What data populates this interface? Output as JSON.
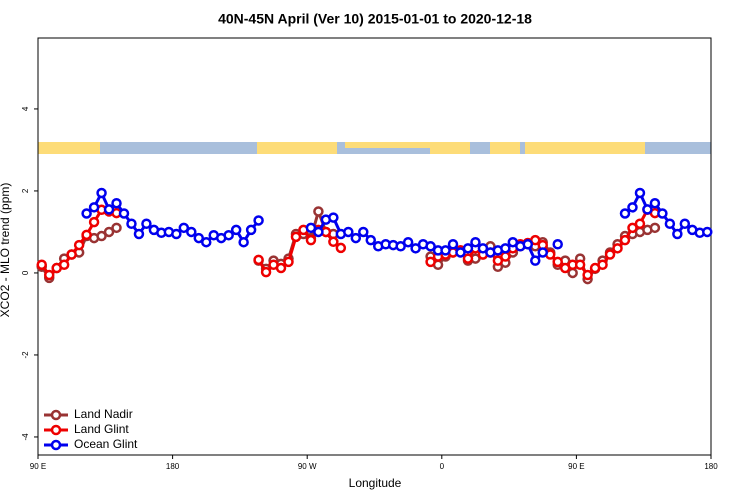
{
  "chart_data": {
    "type": "line",
    "title": "40N-45N April (Ver 10)   2015-01-01 to 2020-12-18",
    "x_label": "Longitude",
    "y_label": "XCO2 - MLO trend (ppm)",
    "xlim": [
      90,
      540
    ],
    "xticks": [
      {
        "value": 90,
        "label": "90 E"
      },
      180,
      {
        "value": 270,
        "label": "90 W"
      },
      {
        "value": 360,
        "label": "0"
      },
      {
        "value": 450,
        "label": "90 E"
      },
      {
        "value": 540,
        "label": "180"
      }
    ],
    "ylim": [
      -4.44,
      5.73
    ],
    "yticks": [
      -4,
      -2,
      0,
      2,
      4
    ],
    "legend": "bottom-left",
    "series": [
      {
        "name": "Land Nadir",
        "color": "#993333",
        "x": [
          92.5,
          97.5,
          102.5,
          107.5,
          112.5,
          117.5,
          122.5,
          127.5,
          132.5,
          137.5,
          142.5,
          147.5,
          237.5,
          242.5,
          247.5,
          252.5,
          257.5,
          262.5,
          267.5,
          272.5,
          277.5,
          282.5,
          287.5,
          292.5,
          352.5,
          357.5,
          362.5,
          367.5,
          372.5,
          377.5,
          382.5,
          387.5,
          392.5,
          397.5,
          402.5,
          407.5,
          412.5,
          417.5,
          422.5,
          427.5,
          432.5,
          437.5,
          442.5,
          447.5,
          452.5,
          457.5,
          462.5,
          467.5,
          472.5,
          477.5,
          482.5,
          487.5,
          492.5,
          497.5,
          502.5
        ],
        "values": [
          0.15,
          -0.12,
          0.12,
          0.35,
          0.45,
          0.5,
          0.9,
          0.85,
          0.9,
          1.0,
          1.1,
          null,
          0.3,
          0.1,
          0.3,
          0.22,
          0.35,
          0.95,
          0.95,
          0.85,
          1.5,
          1.0,
          0.95,
          null,
          0.4,
          0.2,
          0.4,
          0.5,
          0.55,
          0.3,
          0.35,
          0.45,
          0.65,
          0.15,
          0.25,
          0.5,
          0.65,
          0.7,
          0.65,
          0.75,
          0.5,
          0.2,
          0.3,
          0.0,
          0.35,
          -0.15,
          0.1,
          0.3,
          0.5,
          0.7,
          0.9,
          0.95,
          1.0,
          1.05,
          1.1
        ]
      },
      {
        "name": "Land Glint",
        "color": "#ee0000",
        "x": [
          92.5,
          97.5,
          102.5,
          107.5,
          112.5,
          117.5,
          122.5,
          127.5,
          132.5,
          137.5,
          142.5,
          147.5,
          237.5,
          242.5,
          247.5,
          252.5,
          257.5,
          262.5,
          267.5,
          272.5,
          277.5,
          282.5,
          287.5,
          292.5,
          297.5,
          352.5,
          357.5,
          362.5,
          367.5,
          372.5,
          377.5,
          382.5,
          387.5,
          392.5,
          397.5,
          402.5,
          407.5,
          412.5,
          417.5,
          422.5,
          427.5,
          432.5,
          437.5,
          442.5,
          447.5,
          452.5,
          457.5,
          462.5,
          467.5,
          472.5,
          477.5,
          482.5,
          487.5,
          492.5,
          497.5,
          502.5
        ],
        "values": [
          0.2,
          -0.05,
          0.12,
          0.2,
          0.45,
          0.68,
          0.93,
          1.24,
          1.54,
          1.5,
          1.46,
          null,
          0.32,
          0.02,
          0.2,
          0.12,
          0.27,
          0.88,
          1.05,
          0.8,
          1.05,
          1.0,
          0.76,
          0.61,
          null,
          0.27,
          0.4,
          0.45,
          0.5,
          0.55,
          0.35,
          0.6,
          0.45,
          0.5,
          0.3,
          0.4,
          0.6,
          0.7,
          0.73,
          0.8,
          0.68,
          0.45,
          0.27,
          0.12,
          0.2,
          0.2,
          -0.05,
          0.12,
          0.2,
          0.45,
          0.6,
          0.8,
          1.1,
          1.2,
          1.54,
          1.46
        ]
      },
      {
        "name": "Ocean Glint",
        "color": "#0000ee",
        "x": [
          122.5,
          127.5,
          132.5,
          137.5,
          142.5,
          147.5,
          152.5,
          157.5,
          162.5,
          167.5,
          172.5,
          177.5,
          182.5,
          187.5,
          192.5,
          197.5,
          202.5,
          207.5,
          212.5,
          217.5,
          222.5,
          227.5,
          232.5,
          237.5,
          242.5,
          272.5,
          277.5,
          282.5,
          287.5,
          292.5,
          297.5,
          302.5,
          307.5,
          312.5,
          317.5,
          322.5,
          327.5,
          332.5,
          337.5,
          342.5,
          347.5,
          352.5,
          357.5,
          362.5,
          367.5,
          372.5,
          377.5,
          382.5,
          387.5,
          392.5,
          397.5,
          402.5,
          407.5,
          412.5,
          417.5,
          422.5,
          427.5,
          432.5,
          437.5,
          442.5,
          482.5,
          487.5,
          492.5,
          497.5,
          502.5,
          507.5,
          512.5,
          517.5,
          522.5,
          527.5,
          532.5,
          537.5
        ],
        "values": [
          1.45,
          1.6,
          1.95,
          1.55,
          1.7,
          1.45,
          1.2,
          0.95,
          1.2,
          1.05,
          0.98,
          1.0,
          0.95,
          1.1,
          1.0,
          0.85,
          0.75,
          0.92,
          0.85,
          0.92,
          1.05,
          0.75,
          1.05,
          1.28,
          null,
          1.1,
          1.0,
          1.3,
          1.35,
          0.95,
          1.0,
          0.85,
          1.0,
          0.8,
          0.65,
          0.7,
          0.68,
          0.65,
          0.75,
          0.6,
          0.7,
          0.65,
          0.55,
          0.55,
          0.7,
          0.5,
          0.6,
          0.75,
          0.6,
          0.5,
          0.55,
          0.6,
          0.75,
          0.65,
          0.7,
          0.3,
          0.5,
          null,
          0.7,
          null,
          1.45,
          1.6,
          1.95,
          1.55,
          1.7,
          1.45,
          1.2,
          0.95,
          1.2,
          1.05,
          0.98,
          1.0
        ]
      }
    ]
  }
}
